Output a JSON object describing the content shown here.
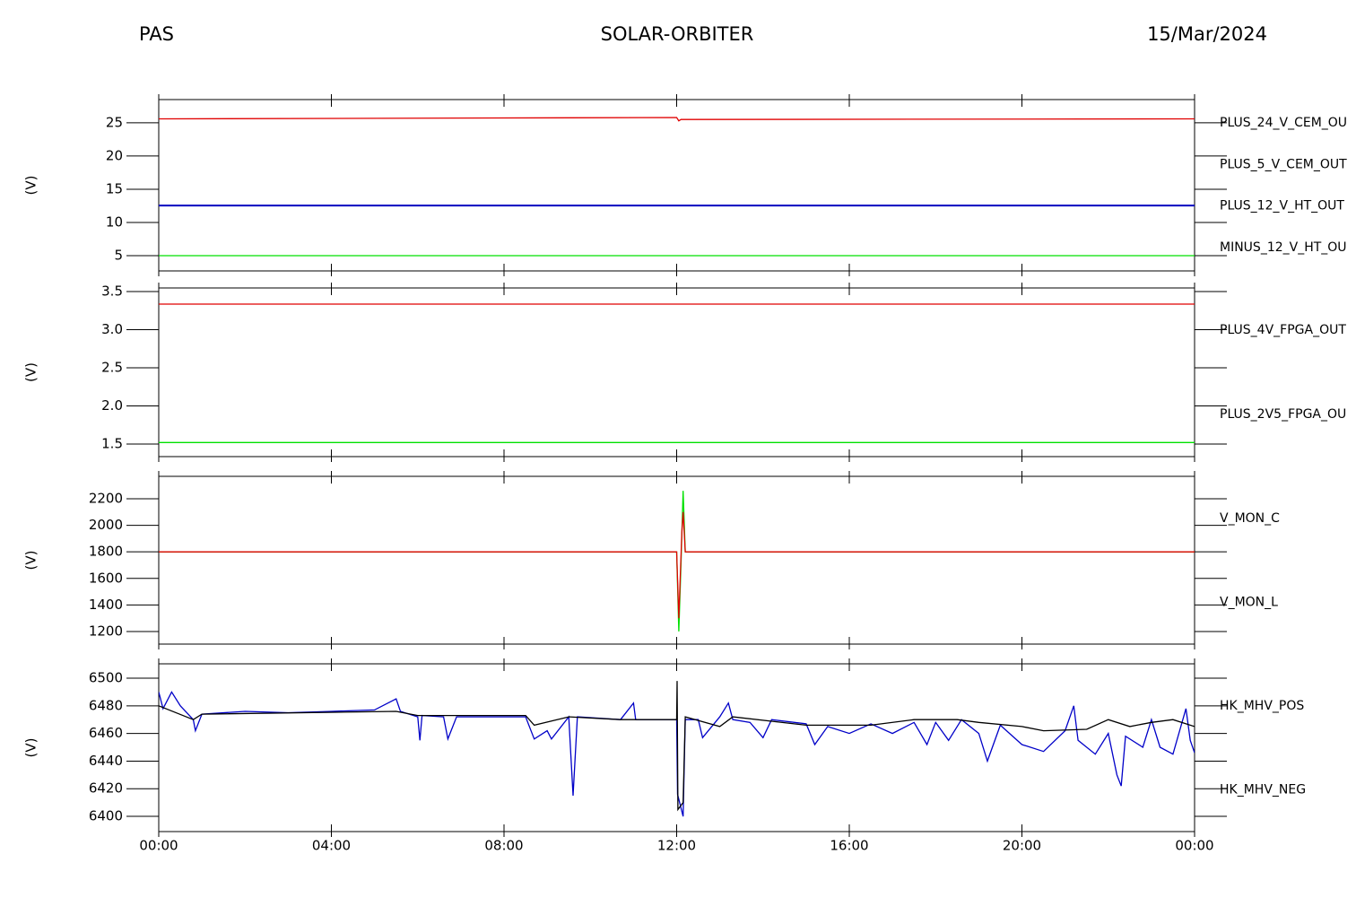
{
  "header": {
    "left": "PAS",
    "title": "SOLAR-ORBITER",
    "right": "15/Mar/2024"
  },
  "chart_data": [
    {
      "type": "line",
      "ylabel": "(V)",
      "xlim": [
        0,
        24
      ],
      "xticks": [
        0,
        4,
        8,
        12,
        16,
        20,
        24
      ],
      "ylim": [
        2.7,
        28.5
      ],
      "yticks": [
        5,
        10,
        15,
        20,
        25
      ],
      "series": [
        {
          "name": "PLUS_24_V_CEM_OU",
          "color": "#e00000",
          "x": [
            0,
            12.0,
            12.05,
            12.1,
            24
          ],
          "values": [
            25.6,
            25.8,
            25.3,
            25.5,
            25.6
          ]
        },
        {
          "name": "PLUS_5_V_CEM_OUT",
          "color": "#00e000",
          "x": [
            0,
            24
          ],
          "values": [
            5,
            5
          ]
        },
        {
          "name": "PLUS_12_V_HT_OUT",
          "color": "#0000c0",
          "x": [
            0,
            24
          ],
          "values": [
            12.55,
            12.55
          ]
        },
        {
          "name": "MINUS_12_V_HT_OU",
          "color": "#000000",
          "x": [
            0,
            24
          ],
          "values": [
            12.5,
            12.5
          ]
        }
      ]
    },
    {
      "type": "line",
      "ylabel": "(V)",
      "xlim": [
        0,
        24
      ],
      "xticks": [
        0,
        4,
        8,
        12,
        16,
        20,
        24
      ],
      "ylim": [
        1.335,
        3.547
      ],
      "yticks": [
        {
          "value": 1.5,
          "label": "1.5"
        },
        {
          "value": 2,
          "label": "2.0"
        },
        {
          "value": 2.5,
          "label": "2.5"
        },
        {
          "value": 3,
          "label": "3.0"
        },
        {
          "value": 3.5,
          "label": "3.5"
        }
      ],
      "series": [
        {
          "name": "PLUS_4V_FPGA_OUT",
          "color": "#e00000",
          "x": [
            0,
            24
          ],
          "values": [
            3.335,
            3.335
          ]
        },
        {
          "name": "PLUS_2V5_FPGA_OU",
          "color": "#00e000",
          "x": [
            0,
            24
          ],
          "values": [
            1.52,
            1.52
          ]
        }
      ]
    },
    {
      "type": "line",
      "ylabel": "(V)",
      "xlim": [
        0,
        24
      ],
      "xticks": [
        0,
        4,
        8,
        12,
        16,
        20,
        24
      ],
      "ylim": [
        1105,
        2369
      ],
      "yticks": [
        1200,
        1400,
        1600,
        1800,
        2000,
        2200
      ],
      "series": [
        {
          "name": "V_MON_C",
          "color": "#e00000",
          "x": [
            0,
            12.0,
            12.05,
            12.12,
            12.15,
            12.2,
            24
          ],
          "values": [
            1800,
            1800,
            1300,
            1950,
            2100,
            1800,
            1800
          ]
        },
        {
          "name": "V_MON_L",
          "color": "#00e000",
          "x": [
            0,
            12.0,
            12.05,
            12.1,
            12.15,
            12.2,
            24
          ],
          "values": [
            1800,
            1800,
            1200,
            1700,
            2260,
            1800,
            1800
          ]
        }
      ]
    },
    {
      "type": "line",
      "ylabel": "(V)",
      "xlim": [
        0,
        24
      ],
      "xticks": [
        {
          "value": 0,
          "label": "00:00"
        },
        {
          "value": 4,
          "label": "04:00"
        },
        {
          "value": 8,
          "label": "08:00"
        },
        {
          "value": 12,
          "label": "12:00"
        },
        {
          "value": 16,
          "label": "16:00"
        },
        {
          "value": 20,
          "label": "20:00"
        },
        {
          "value": 24,
          "label": "00:00"
        }
      ],
      "ylim": [
        6389,
        6510.4
      ],
      "yticks": [
        6400,
        6420,
        6440,
        6460,
        6480,
        6500
      ],
      "series": [
        {
          "name": "HK_MHV_POS",
          "color": "#000000",
          "x": [
            0,
            0.8,
            1.0,
            5.5,
            6.0,
            8.5,
            8.7,
            9.5,
            10.7,
            12.0,
            12.01,
            12.03,
            12.15,
            12.2,
            13.0,
            13.3,
            15.0,
            16.5,
            17.5,
            18.5,
            19.0,
            20.0,
            20.5,
            21.5,
            22.0,
            22.5,
            23.0,
            23.5,
            24.0
          ],
          "values": [
            6480,
            6470,
            6474,
            6476,
            6473,
            6473,
            6466,
            6472,
            6470,
            6470,
            6498,
            6405,
            6410,
            6472,
            6465,
            6472,
            6466,
            6466,
            6470,
            6470,
            6468,
            6465,
            6462,
            6463,
            6470,
            6465,
            6468,
            6470,
            6465
          ]
        },
        {
          "name": "HK_MHV_NEG",
          "color": "#0000c8",
          "x": [
            0,
            0.1,
            0.3,
            0.5,
            0.8,
            0.85,
            1.0,
            2.0,
            3.0,
            4.0,
            5.0,
            5.5,
            5.6,
            6.0,
            6.05,
            6.1,
            6.6,
            6.7,
            6.9,
            8.5,
            8.7,
            9.0,
            9.1,
            9.5,
            9.6,
            9.7,
            10.7,
            11.0,
            11.05,
            12.0,
            12.02,
            12.15,
            12.2,
            12.5,
            12.6,
            13.0,
            13.2,
            13.3,
            13.7,
            14.0,
            14.2,
            15.0,
            15.2,
            15.5,
            16.0,
            16.5,
            17.0,
            17.5,
            17.8,
            18.0,
            18.3,
            18.6,
            19.0,
            19.2,
            19.5,
            20.0,
            20.5,
            21.0,
            21.2,
            21.3,
            21.7,
            22.0,
            22.2,
            22.3,
            22.4,
            22.8,
            23.0,
            23.2,
            23.5,
            23.8,
            23.9,
            24.0
          ],
          "values": [
            6490,
            6478,
            6490,
            6480,
            6470,
            6462,
            6474,
            6476,
            6475,
            6476,
            6477,
            6485,
            6476,
            6472,
            6455,
            6473,
            6472,
            6456,
            6472,
            6472,
            6456,
            6462,
            6456,
            6472,
            6415,
            6472,
            6470,
            6482,
            6470,
            6470,
            6416,
            6400,
            6470,
            6470,
            6457,
            6472,
            6482,
            6470,
            6468,
            6457,
            6470,
            6467,
            6452,
            6465,
            6460,
            6467,
            6460,
            6468,
            6452,
            6468,
            6455,
            6470,
            6460,
            6440,
            6466,
            6452,
            6447,
            6462,
            6480,
            6455,
            6445,
            6460,
            6430,
            6422,
            6458,
            6450,
            6470,
            6450,
            6445,
            6478,
            6455,
            6446
          ]
        }
      ]
    }
  ]
}
